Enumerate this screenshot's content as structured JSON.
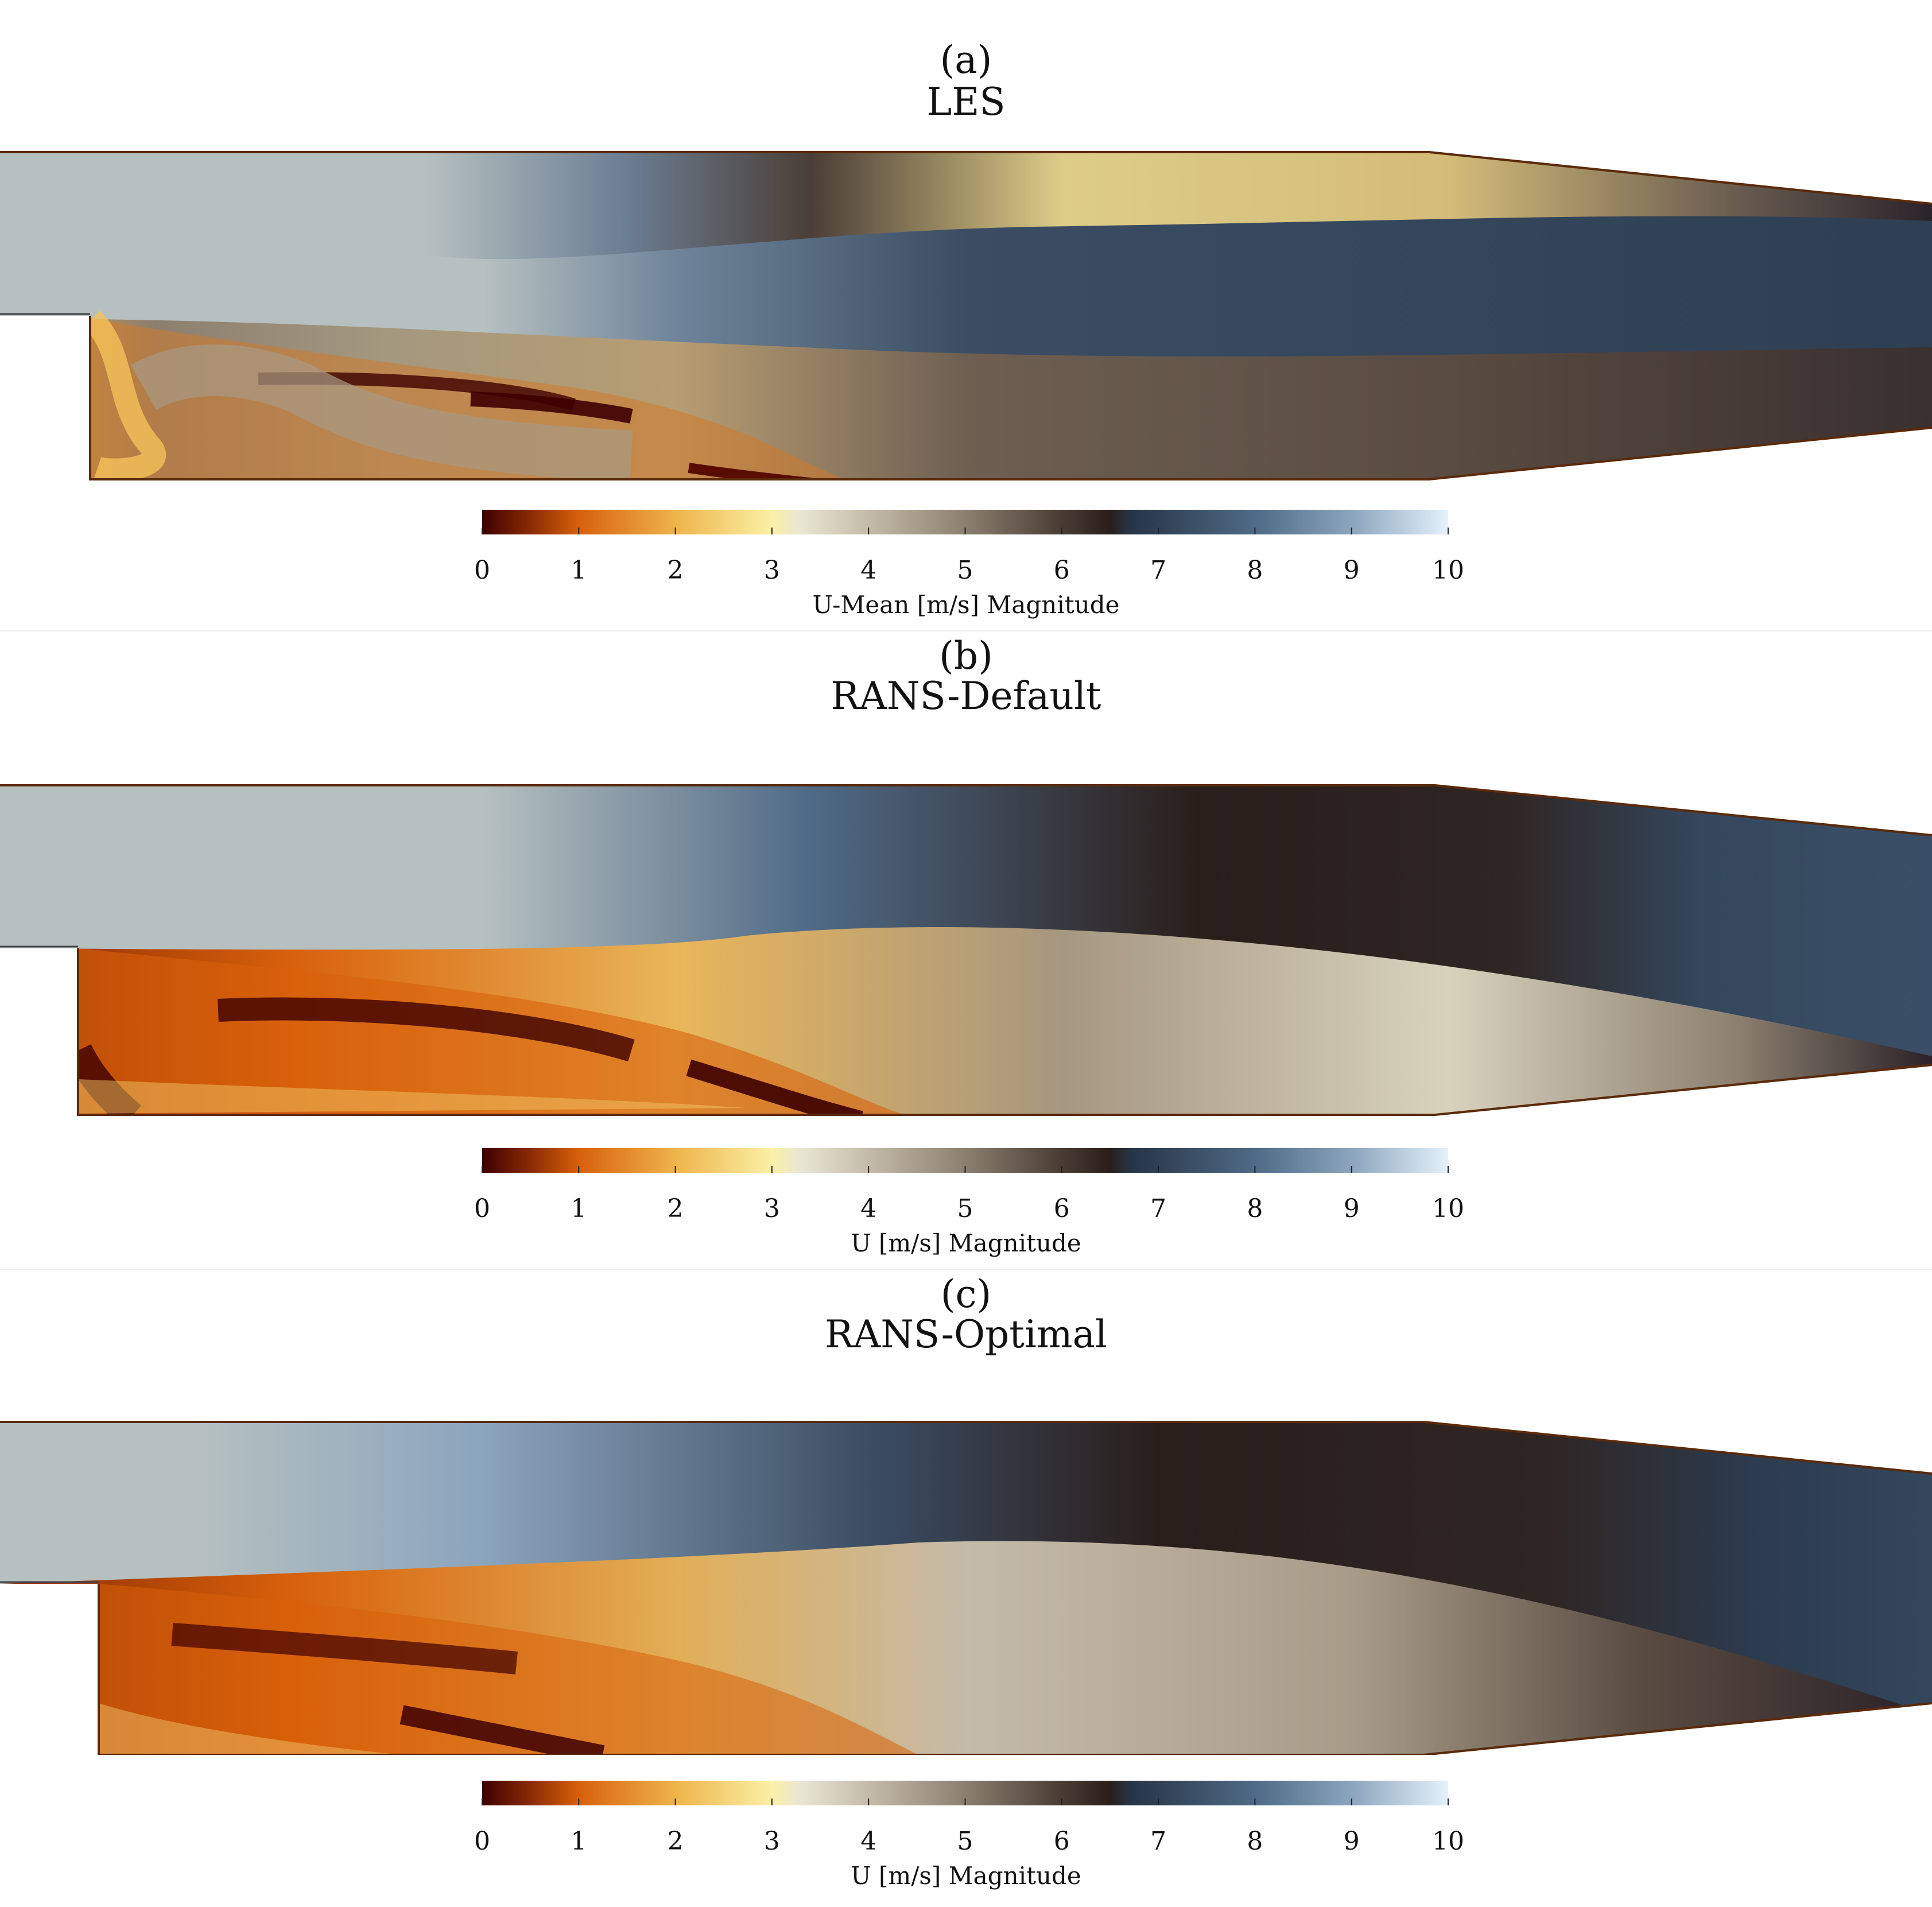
{
  "panels": [
    {
      "label": "(a)",
      "title": "LES",
      "colorbar": {
        "title": "U-Mean [m/s] Magnitude",
        "min": 0,
        "max": 10,
        "ticks": [
          "0",
          "1",
          "2",
          "3",
          "4",
          "5",
          "6",
          "7",
          "8",
          "9",
          "10"
        ]
      }
    },
    {
      "label": "(b)",
      "title": "RANS-Default",
      "colorbar": {
        "title": "U [m/s] Magnitude",
        "min": 0,
        "max": 10,
        "ticks": [
          "0",
          "1",
          "2",
          "3",
          "4",
          "5",
          "6",
          "7",
          "8",
          "9",
          "10"
        ]
      }
    },
    {
      "label": "(c)",
      "title": "RANS-Optimal",
      "colorbar": {
        "title": "U [m/s] Magnitude",
        "min": 0,
        "max": 10,
        "ticks": [
          "0",
          "1",
          "2",
          "3",
          "4",
          "5",
          "6",
          "7",
          "8",
          "9",
          "10"
        ]
      }
    }
  ],
  "colormap": {
    "stops": [
      {
        "v": 0.0,
        "c": "#3d0000"
      },
      {
        "v": 0.5,
        "c": "#8a2a05"
      },
      {
        "v": 1.0,
        "c": "#d8600a"
      },
      {
        "v": 2.0,
        "c": "#eeb44a"
      },
      {
        "v": 3.0,
        "c": "#fbf0a6"
      },
      {
        "v": 3.3,
        "c": "#e9e6d4"
      },
      {
        "v": 4.0,
        "c": "#c4bba8"
      },
      {
        "v": 5.0,
        "c": "#8c7f6f"
      },
      {
        "v": 6.0,
        "c": "#4a3c33"
      },
      {
        "v": 6.5,
        "c": "#2a1e1b"
      },
      {
        "v": 6.7,
        "c": "#263445"
      },
      {
        "v": 8.0,
        "c": "#4f6a86"
      },
      {
        "v": 9.0,
        "c": "#8ba5bd"
      },
      {
        "v": 10.0,
        "c": "#e4f1fb"
      }
    ],
    "inlet_color": "#b6c0c0"
  }
}
